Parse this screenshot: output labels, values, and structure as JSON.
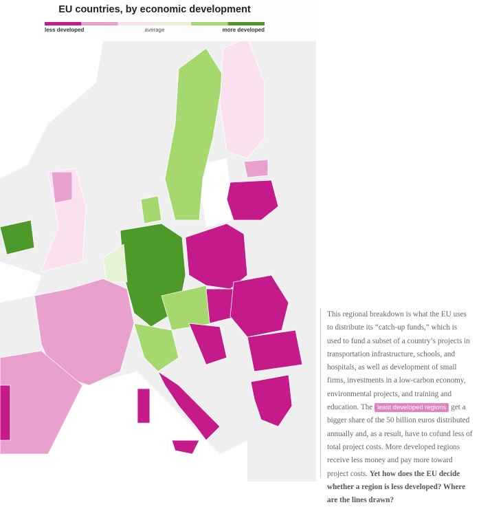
{
  "header": {
    "title": "EU countries, by economic development"
  },
  "legend": {
    "colors": [
      "#c51b8a",
      "#e7a1cc",
      "#fbe0ef",
      "#e6f4d5",
      "#a5d86e",
      "#4d9a2a"
    ],
    "labels": {
      "low": "less developed",
      "mid": "average",
      "high": "more developed"
    }
  },
  "article": {
    "text_before": "This regional breakdown is what the EU uses to distribute its “catch-up funds,” which is used to fund a subset of a country’s projects in transportation infrastructure, schools, and hospitals, as well as development of small firms, investments in a low-carbon economy, environmental projects, and training and education. The",
    "highlight": "least developed regions",
    "text_after": "get a bigger share of the 50 billion euros distributed annually and, as a result, have to cofund less of total project costs. More developed regions receive less money and pay more toward project costs.",
    "question": "Yet how does the EU decide whether a region is less developed? Where are the lines drawn?"
  }
}
